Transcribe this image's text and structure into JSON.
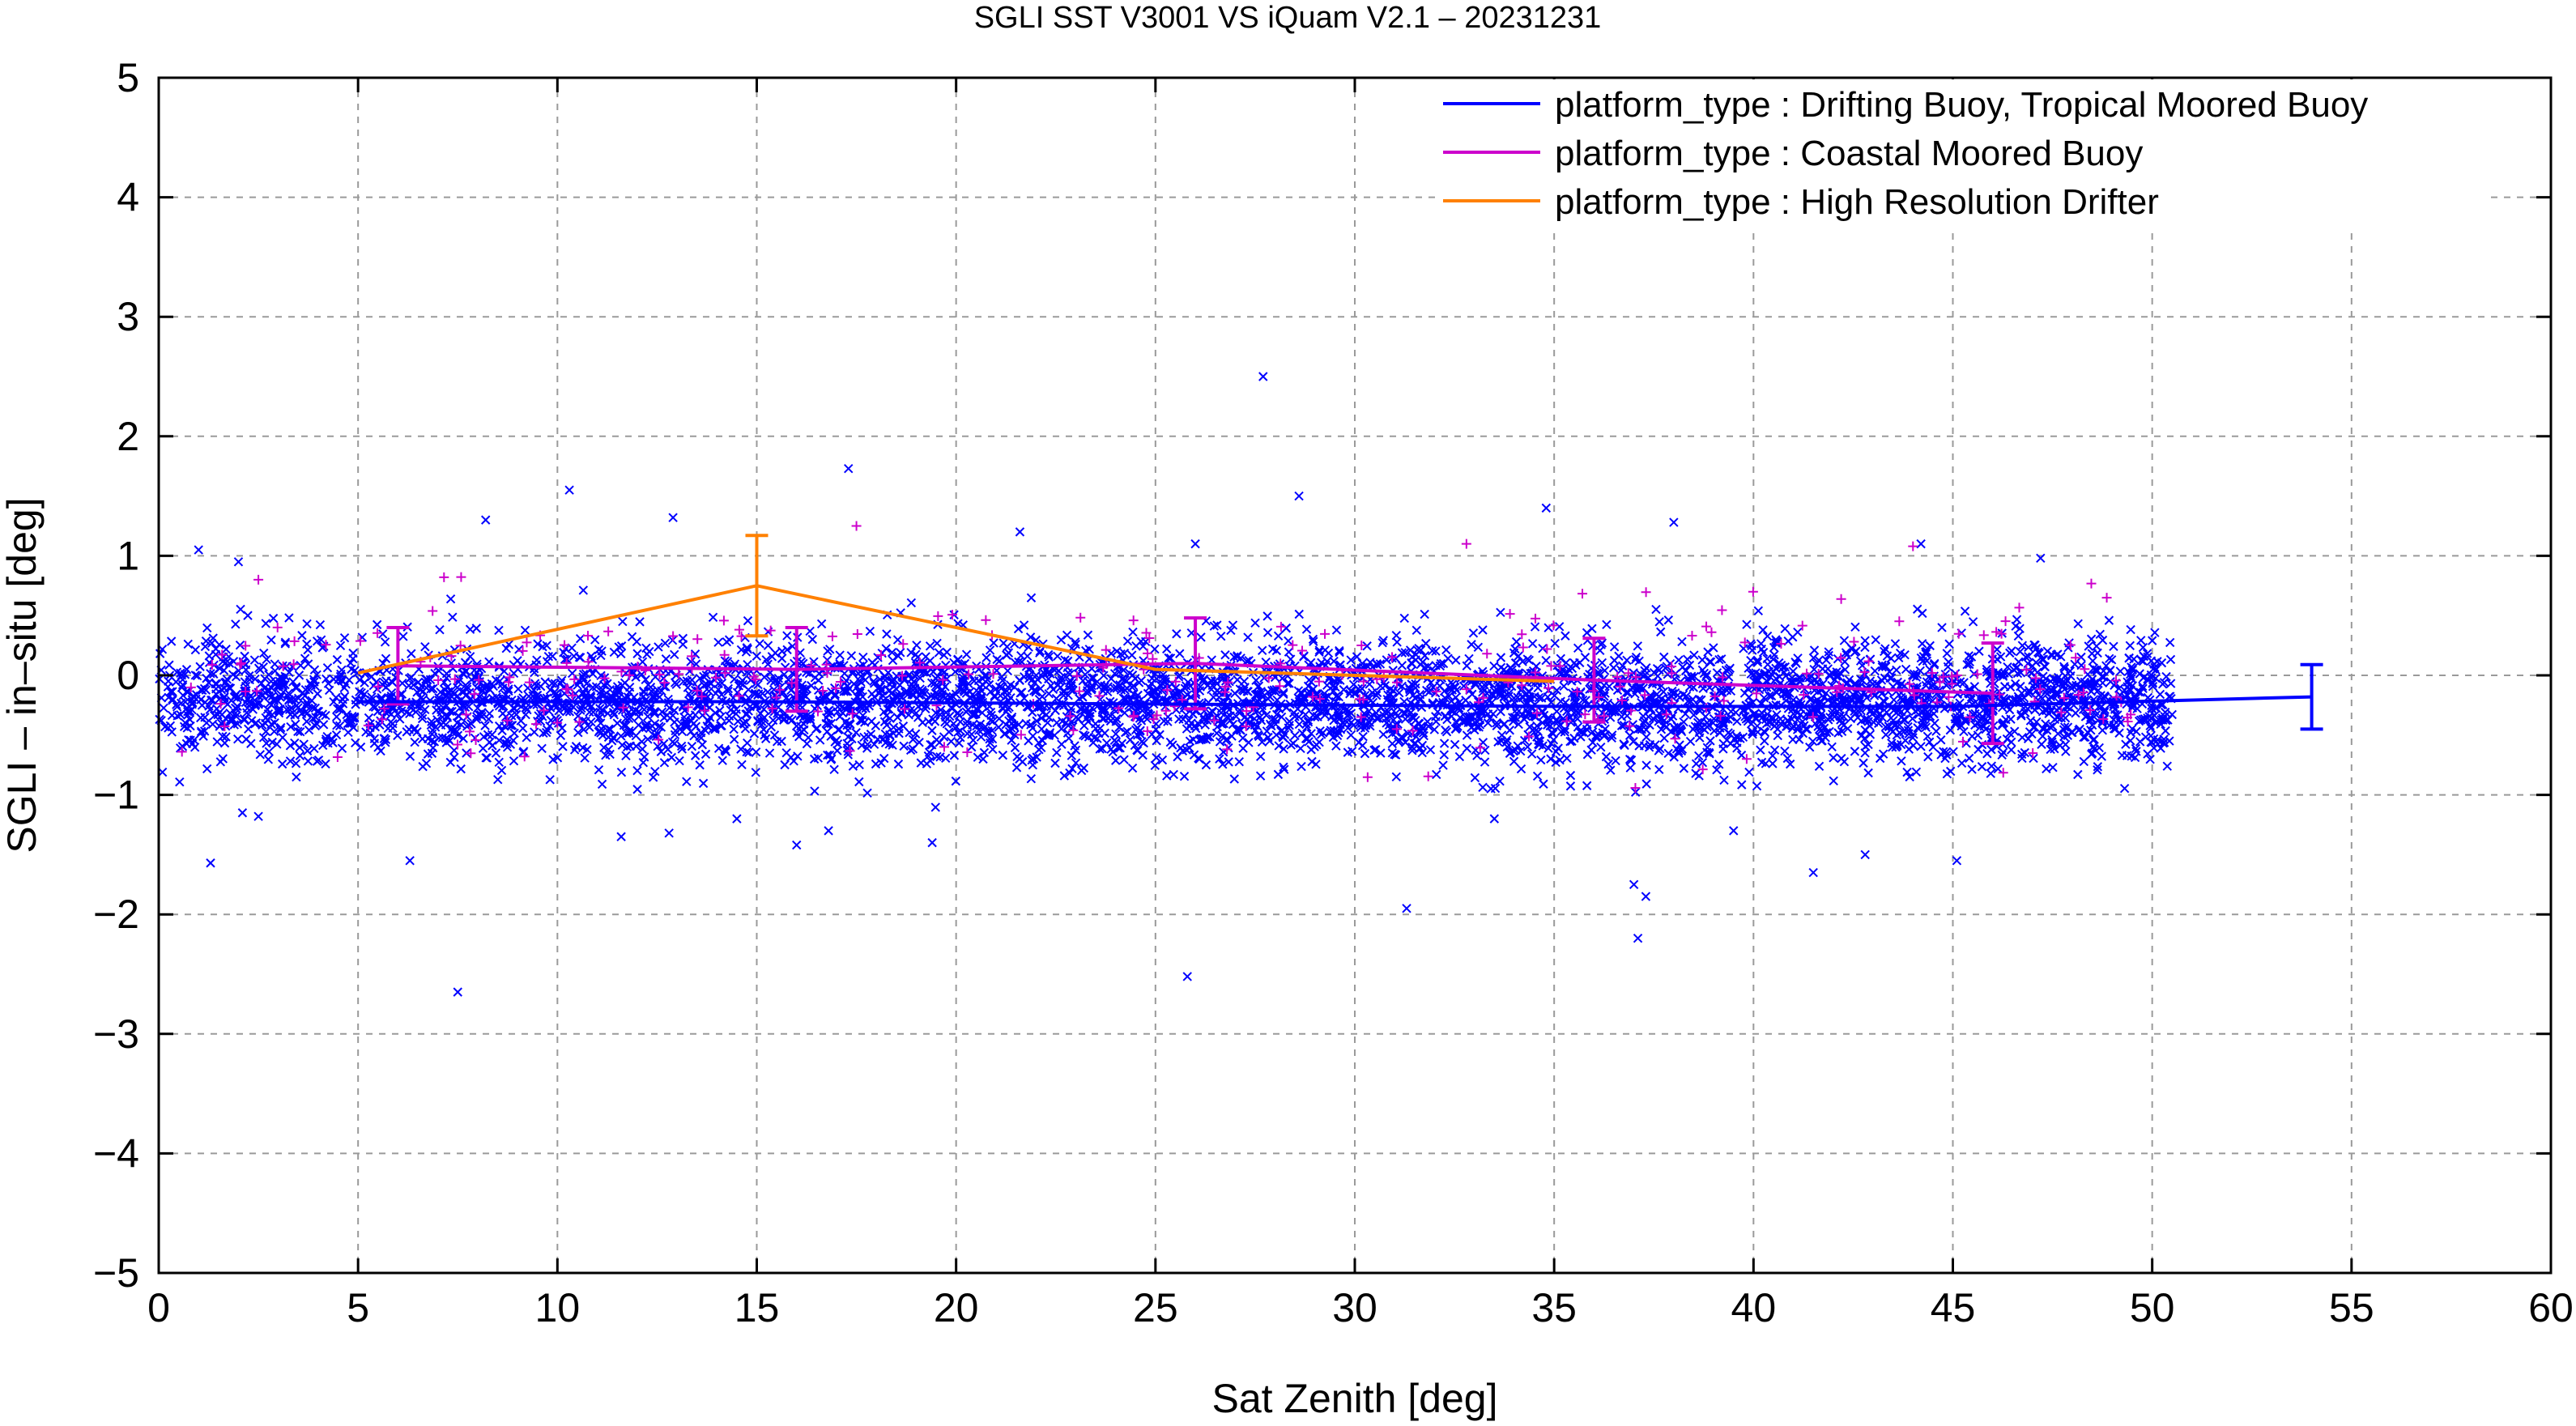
{
  "chart_data": {
    "type": "scatter",
    "title": "SGLI SST V3001 VS iQuam V2.1  – 20231231",
    "xlabel": "Sat Zenith [deg]",
    "ylabel": "SGLI – in–situ [deg]",
    "xlim": [
      0,
      60
    ],
    "ylim": [
      -5,
      5
    ],
    "xticks": [
      0,
      5,
      10,
      15,
      20,
      25,
      30,
      35,
      40,
      45,
      50,
      55,
      60
    ],
    "yticks": [
      -5,
      -4,
      -3,
      -2,
      -1,
      0,
      1,
      2,
      3,
      4,
      5
    ],
    "ytick_labels": [
      "−5",
      "−4",
      "−3",
      "−2",
      "−1",
      "0",
      "1",
      "2",
      "3",
      "4",
      "5"
    ],
    "grid": true,
    "legend_position": "top-right",
    "series": [
      {
        "name": "platform_type : Drifting Buoy, Tropical Moored Buoy",
        "color": "#0000ff",
        "marker": "x",
        "scatter_cloud": {
          "x_range": [
            0,
            50.5
          ],
          "mean": -0.22,
          "spread": 0.26,
          "count": 5000
        },
        "outliers": [
          [
            7.5,
            -2.65
          ],
          [
            6.3,
            -1.55
          ],
          [
            1.3,
            -1.57
          ],
          [
            2.1,
            -1.15
          ],
          [
            2.5,
            -1.18
          ],
          [
            11.6,
            -1.35
          ],
          [
            12.8,
            -1.32
          ],
          [
            19.4,
            -1.4
          ],
          [
            16.8,
            -1.3
          ],
          [
            8.2,
            1.3
          ],
          [
            10.3,
            1.55
          ],
          [
            12.9,
            1.32
          ],
          [
            17.3,
            1.73
          ],
          [
            21.6,
            1.2
          ],
          [
            25.8,
            -2.52
          ],
          [
            27.7,
            2.5
          ],
          [
            28.6,
            1.5
          ],
          [
            31.3,
            -1.95
          ],
          [
            34.8,
            1.4
          ],
          [
            37.0,
            -1.75
          ],
          [
            37.3,
            -1.85
          ],
          [
            37.1,
            -2.2
          ],
          [
            38.0,
            1.28
          ],
          [
            44.2,
            1.1
          ],
          [
            45.1,
            -1.55
          ],
          [
            41.5,
            -1.65
          ],
          [
            42.8,
            -1.5
          ],
          [
            33.5,
            -1.2
          ],
          [
            26.0,
            1.1
          ],
          [
            1.0,
            1.05
          ],
          [
            39.5,
            -1.3
          ],
          [
            47.2,
            0.98
          ],
          [
            16.0,
            -1.42
          ],
          [
            2.0,
            0.95
          ],
          [
            14.5,
            -1.2
          ]
        ],
        "binned_line": {
          "x": [
            5,
            15,
            25,
            35,
            45,
            54
          ],
          "y": [
            -0.22,
            -0.22,
            -0.24,
            -0.26,
            -0.26,
            -0.18
          ]
        },
        "error_bars": [
          {
            "x": 54,
            "y": -0.18,
            "err": 0.27
          }
        ]
      },
      {
        "name": "platform_type : Coastal Moored Buoy",
        "color": "#cc00cc",
        "marker": "+",
        "scatter_cloud": {
          "x_range": [
            0.5,
            49.5
          ],
          "mean": -0.05,
          "spread": 0.3,
          "count": 300
        },
        "outliers": [
          [
            17.5,
            1.25
          ],
          [
            32.8,
            1.1
          ],
          [
            44.0,
            1.08
          ],
          [
            2.5,
            0.8
          ]
        ],
        "binned_line": {
          "x": [
            6,
            16,
            26,
            36,
            46
          ],
          "y": [
            0.08,
            0.05,
            0.1,
            -0.04,
            -0.15
          ]
        },
        "error_bars": [
          {
            "x": 6,
            "y": 0.08,
            "err": 0.32
          },
          {
            "x": 16,
            "y": 0.05,
            "err": 0.35
          },
          {
            "x": 26,
            "y": 0.1,
            "err": 0.38
          },
          {
            "x": 36,
            "y": -0.04,
            "err": 0.35
          },
          {
            "x": 46,
            "y": -0.15,
            "err": 0.42
          }
        ]
      },
      {
        "name": "platform_type : High Resolution Drifter",
        "color": "#ff8000",
        "marker": "+",
        "binned_line": {
          "x": [
            5,
            15,
            25,
            35
          ],
          "y": [
            0.02,
            0.75,
            0.05,
            -0.05
          ]
        },
        "error_bars": [
          {
            "x": 15,
            "y": 0.75,
            "err": 0.42
          }
        ]
      }
    ]
  }
}
